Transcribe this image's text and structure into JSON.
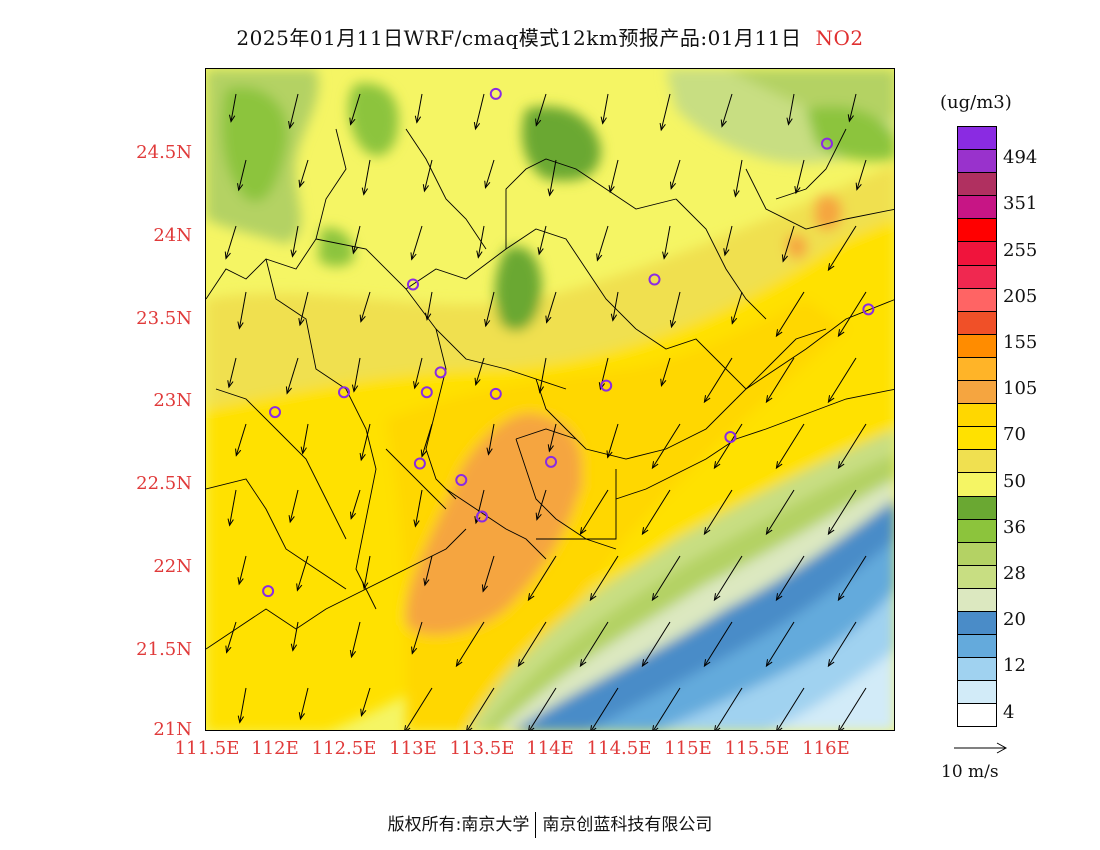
{
  "title": {
    "text": "2025年01月11日WRF/cmaq模式12km预报产品:01月11日",
    "pollutant": "NO2"
  },
  "map": {
    "lat_ticks": [
      "24.5N",
      "24N",
      "23.5N",
      "23N",
      "22.5N",
      "22N",
      "21.5N",
      "21N"
    ],
    "lon_ticks": [
      "111.5E",
      "112E",
      "112.5E",
      "113E",
      "113.5E",
      "114E",
      "114.5E",
      "115E",
      "115.5E",
      "116E"
    ],
    "lat_range": [
      21.0,
      25.0
    ],
    "lon_range": [
      111.5,
      116.5
    ],
    "stations": [
      [
        113.6,
        24.85
      ],
      [
        116.0,
        24.55
      ],
      [
        113.0,
        23.7
      ],
      [
        114.75,
        23.73
      ],
      [
        116.3,
        23.55
      ],
      [
        113.2,
        23.17
      ],
      [
        112.5,
        23.05
      ],
      [
        113.1,
        23.05
      ],
      [
        113.6,
        23.04
      ],
      [
        114.4,
        23.09
      ],
      [
        112.0,
        22.93
      ],
      [
        115.3,
        22.78
      ],
      [
        113.05,
        22.62
      ],
      [
        113.35,
        22.52
      ],
      [
        114.0,
        22.63
      ],
      [
        113.5,
        22.3
      ],
      [
        111.95,
        21.85
      ]
    ]
  },
  "colorbar": {
    "unit": "(ug/m3)",
    "colors": [
      "#8a2be2",
      "#9932cc",
      "#b03060",
      "#c71585",
      "#ff0000",
      "#f0143c",
      "#f02850",
      "#ff6464",
      "#f05028",
      "#ff8c00",
      "#ffb428",
      "#f5a540",
      "#ffd700",
      "#ffe100",
      "#f0e050",
      "#f5f564",
      "#6aa832",
      "#8cc43c",
      "#b4d264",
      "#c8de82",
      "#dce8c0",
      "#4a8cc8",
      "#64aadc",
      "#a0d2f0",
      "#d2ebf8",
      "#ffffff"
    ],
    "labels": [
      "494",
      "351",
      "255",
      "205",
      "155",
      "105",
      "70",
      "50",
      "36",
      "28",
      "20",
      "12",
      "4"
    ]
  },
  "vector_ref": {
    "label": "10 m/s"
  },
  "footer": {
    "copyright_a": "版权所有:南京大学",
    "copyright_b": "南京创蓝科技有限公司"
  }
}
